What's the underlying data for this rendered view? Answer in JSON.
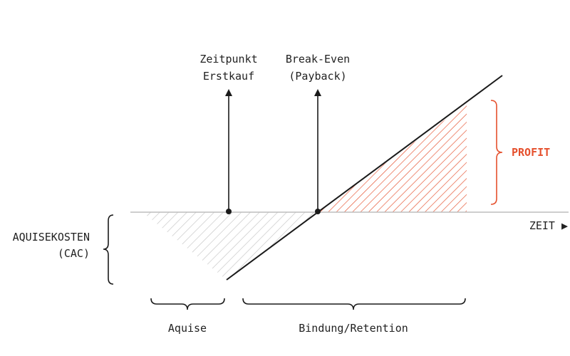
{
  "colors": {
    "ink": "#1a1a1a",
    "accent": "#e5502d",
    "loss_hatch": "#c4c4c4",
    "axis": "#bdbdbd"
  },
  "labels": {
    "first_purchase_line1": "Zeitpunkt",
    "first_purchase_line2": "Erstkauf",
    "break_even_line1": "Break-Even",
    "break_even_line2": "(Payback)",
    "profit": "PROFIT",
    "time_axis": "ZEIT ▶",
    "acquisition_cost_line1": "AQUISEKOSTEN",
    "acquisition_cost_line2": "(CAC)",
    "phase_acquisition": "Aquise",
    "phase_retention": "Bindung/Retention"
  }
}
